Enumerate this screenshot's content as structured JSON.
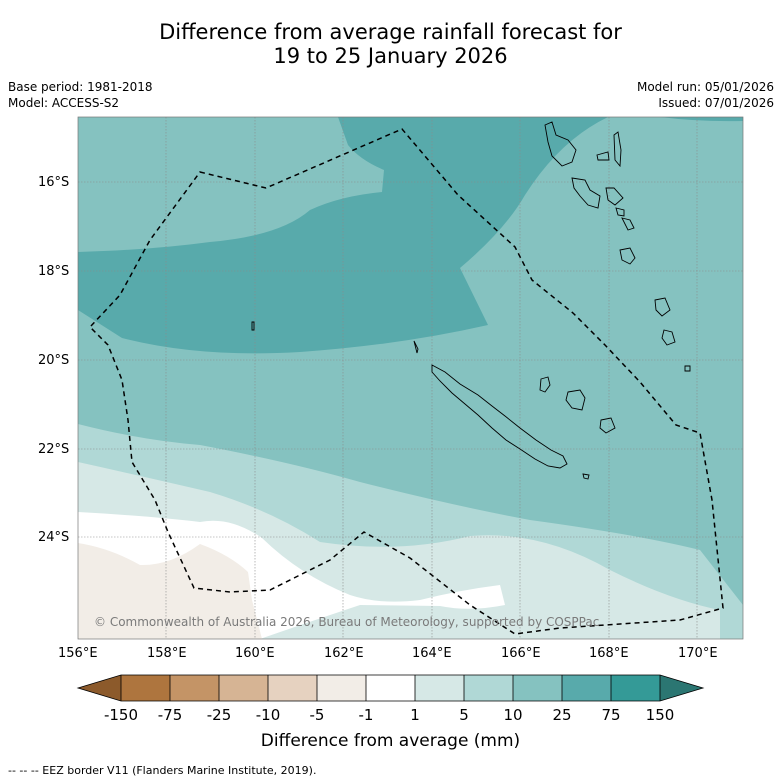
{
  "title_line1": "Difference from average rainfall forecast for",
  "title_line2": "19 to 25 January 2026",
  "base_period": "Base period: 1981-2018",
  "model": "Model: ACCESS-S2",
  "model_run": "Model run: 05/01/2026",
  "issued": "Issued: 07/01/2026",
  "lat_labels": [
    "16°S",
    "18°S",
    "20°S",
    "22°S",
    "24°S"
  ],
  "lon_labels": [
    "156°E",
    "158°E",
    "160°E",
    "162°E",
    "164°E",
    "166°E",
    "168°E",
    "170°E"
  ],
  "colorbar": {
    "title": "Difference from average (mm)",
    "tick_labels": [
      "-150",
      "-75",
      "-25",
      "-10",
      "-5",
      "-1",
      "1",
      "5",
      "10",
      "25",
      "75",
      "150"
    ],
    "colors": {
      "lt_neg150": "#8c5a2b",
      "neg150_neg75": "#ae753e",
      "neg75_neg25": "#c49466",
      "neg25_neg10": "#d6b494",
      "neg10_neg5": "#e6d2c0",
      "neg5_neg1": "#f2ede7",
      "neg1_1": "#ffffff",
      "1_5": "#d6e8e6",
      "5_10": "#b0d8d6",
      "10_25": "#85c2c0",
      "25_75": "#58aaab",
      "75_150": "#349a97",
      "gt_150": "#2b7672"
    }
  },
  "copyright": "© Commonwealth of Australia 2026, Bureau of Meteorology, supported by COSPPac",
  "footer_legend": "--  --  -- EEZ border V11 (Flanders Marine Institute, 2019)."
}
